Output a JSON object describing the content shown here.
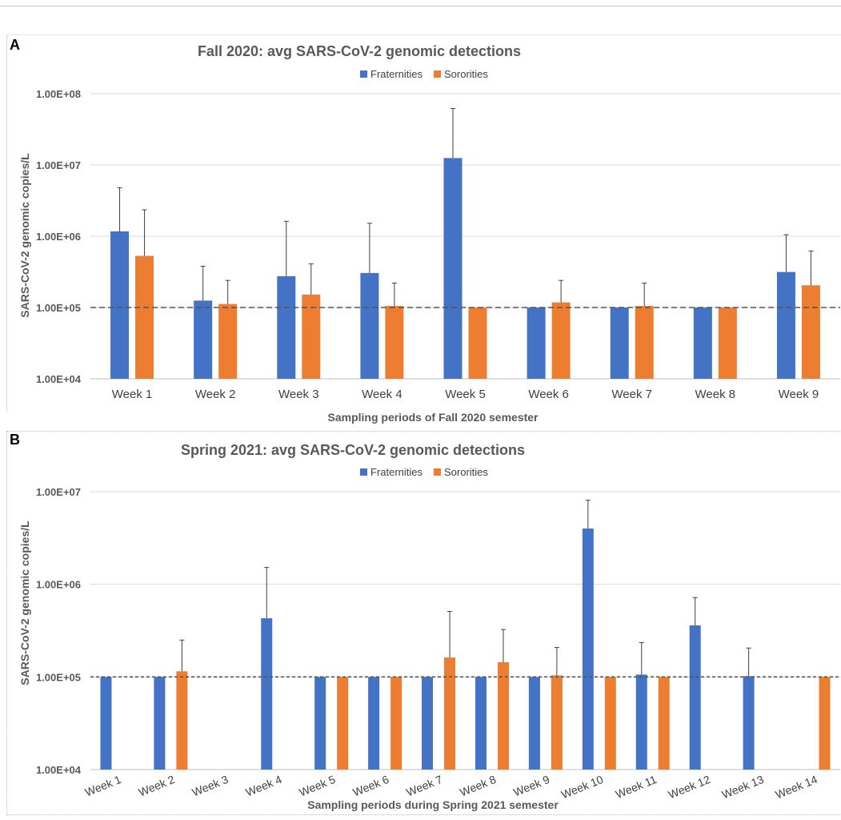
{
  "chart_data": [
    {
      "panel_label": "A",
      "type": "bar",
      "title": "Fall 2020: avg SARS-CoV-2 genomic detections",
      "xlabel": "Sampling periods of Fall 2020 semester",
      "ylabel": "SARS-CoV-2 genomic copies/L",
      "y_scale": "log",
      "ylim": [
        10000,
        100000000
      ],
      "y_ticks": [
        10000,
        100000,
        1000000,
        10000000,
        100000000
      ],
      "y_tick_labels": [
        "1.00E+04",
        "1.00E+05",
        "1.00E+06",
        "1.00E+07",
        "1.00E+08"
      ],
      "reference_line": 100000,
      "grid": true,
      "legend_position": "top-center",
      "categories": [
        "Week 1",
        "Week 2",
        "Week 3",
        "Week 4",
        "Week 5",
        "Week 6",
        "Week 7",
        "Week 8",
        "Week 9"
      ],
      "series": [
        {
          "name": "Fraternities",
          "color": "#4472c4",
          "values": [
            1170000,
            125000,
            275000,
            305000,
            12500000,
            100000,
            100000,
            100000,
            315000
          ],
          "error_upper": [
            4800000,
            380000,
            1620000,
            1520000,
            62000000,
            null,
            null,
            null,
            1050000
          ]
        },
        {
          "name": "Sororities",
          "color": "#ed7d31",
          "values": [
            530000,
            112000,
            152000,
            105000,
            100000,
            118000,
            105000,
            100000,
            205000
          ],
          "error_upper": [
            2350000,
            240000,
            410000,
            220000,
            null,
            240000,
            220000,
            null,
            620000
          ]
        }
      ]
    },
    {
      "panel_label": "B",
      "type": "bar",
      "title": "Spring 2021: avg SARS-CoV-2 genomic detections",
      "xlabel": "Sampling periods during Spring 2021 semester",
      "ylabel": "SARS-CoV-2 genomic copies/L",
      "y_scale": "log",
      "ylim": [
        10000,
        10000000
      ],
      "y_ticks": [
        10000,
        100000,
        1000000,
        10000000
      ],
      "y_tick_labels": [
        "1.00E+04",
        "1.00E+05",
        "1.00E+06",
        "1.00E+07"
      ],
      "reference_line": 100000,
      "grid": true,
      "legend_position": "top-center",
      "categories": [
        "Week 1",
        "Week 2",
        "Week 3",
        "Week 4",
        "Week 5",
        "Week 6",
        "Week 7",
        "Week 8",
        "Week 9",
        "Week 10",
        "Week 11",
        "Week 12",
        "Week 13",
        "Week 14"
      ],
      "series": [
        {
          "name": "Fraternities",
          "color": "#4472c4",
          "values": [
            100000,
            100000,
            null,
            430000,
            100000,
            100000,
            100000,
            100000,
            100000,
            4000000,
            106000,
            360000,
            102000,
            null
          ],
          "error_upper": [
            null,
            null,
            null,
            1520000,
            null,
            null,
            null,
            null,
            null,
            8100000,
            235000,
            720000,
            205000,
            null
          ]
        },
        {
          "name": "Sororities",
          "color": "#ed7d31",
          "values": [
            null,
            115000,
            null,
            null,
            100000,
            100000,
            162000,
            144000,
            104000,
            100000,
            100000,
            null,
            null,
            100000
          ],
          "error_upper": [
            null,
            250000,
            null,
            null,
            null,
            null,
            510000,
            325000,
            208000,
            null,
            null,
            null,
            null,
            null
          ]
        }
      ]
    }
  ]
}
